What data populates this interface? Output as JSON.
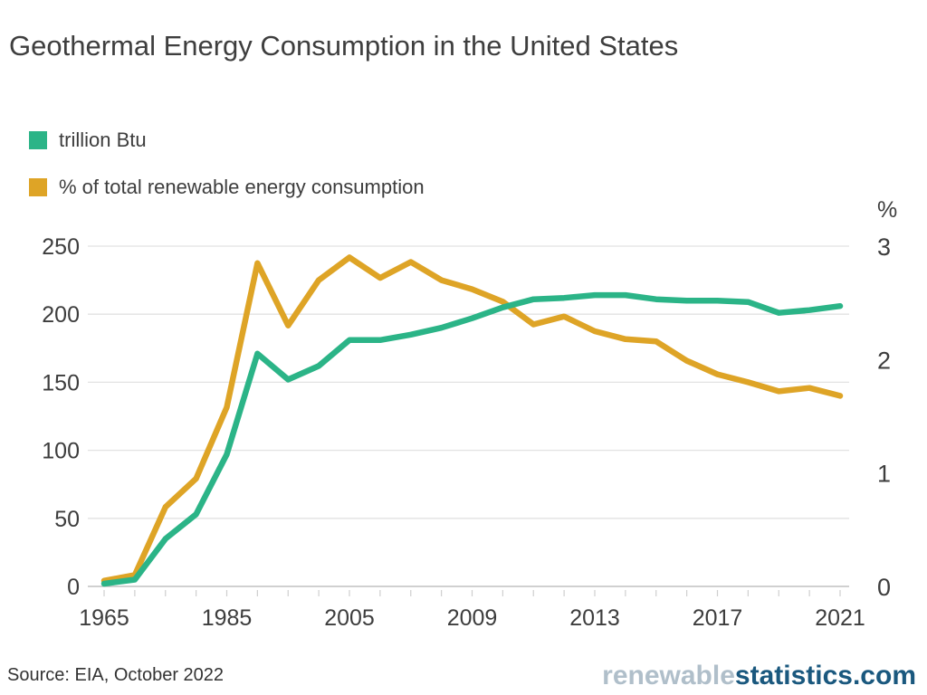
{
  "title": "Geothermal Energy Consumption in the United States",
  "legend": [
    {
      "label": "trillion Btu",
      "color": "#2bb487"
    },
    {
      "label": "% of total renewable energy consumption",
      "color": "#dea426"
    }
  ],
  "chart_data": {
    "type": "line",
    "x": [
      1965,
      1970,
      1975,
      1980,
      1985,
      1990,
      1995,
      2000,
      2005,
      2006,
      2007,
      2008,
      2009,
      2010,
      2011,
      2012,
      2013,
      2014,
      2015,
      2016,
      2017,
      2018,
      2019,
      2020,
      2021
    ],
    "series": [
      {
        "name": "trillion Btu",
        "axis": "left",
        "color": "#2bb487",
        "values": [
          2,
          5,
          35,
          53,
          97,
          171,
          152,
          162,
          181,
          181,
          185,
          190,
          197,
          205,
          211,
          212,
          214,
          214,
          211,
          210,
          210,
          209,
          201,
          203,
          206
        ]
      },
      {
        "name": "% of total renewable energy consumption",
        "axis": "right",
        "color": "#dea426",
        "values": [
          0.05,
          0.1,
          0.7,
          0.95,
          1.58,
          2.85,
          2.3,
          2.7,
          2.9,
          2.72,
          2.86,
          2.7,
          2.62,
          2.51,
          2.31,
          2.38,
          2.25,
          2.18,
          2.16,
          1.99,
          1.87,
          1.8,
          1.72,
          1.75,
          1.68
        ]
      }
    ],
    "left_axis": {
      "ticks": [
        0,
        50,
        100,
        150,
        200,
        250
      ],
      "range": [
        0,
        250
      ]
    },
    "right_axis": {
      "label": "%",
      "ticks": [
        0,
        1,
        2,
        3
      ],
      "range": [
        0,
        3
      ]
    },
    "x_tick_labels": [
      "1965",
      "1985",
      "2005",
      "2009",
      "2013",
      "2017",
      "2021"
    ],
    "grid": true,
    "legend_position": "top-left"
  },
  "colors": {
    "gridline": "#e2e2e2",
    "zero_line": "#b5b5b5",
    "x_tickmark": "#cfcfcf",
    "axis_text": "#3d3d3d"
  },
  "footer": {
    "source": "Source: EIA, October 2022",
    "brand_light": "renewable",
    "brand_dark": "statistics.com",
    "brand_light_color": "#b0bfca",
    "brand_dark_color": "#1a587e"
  }
}
